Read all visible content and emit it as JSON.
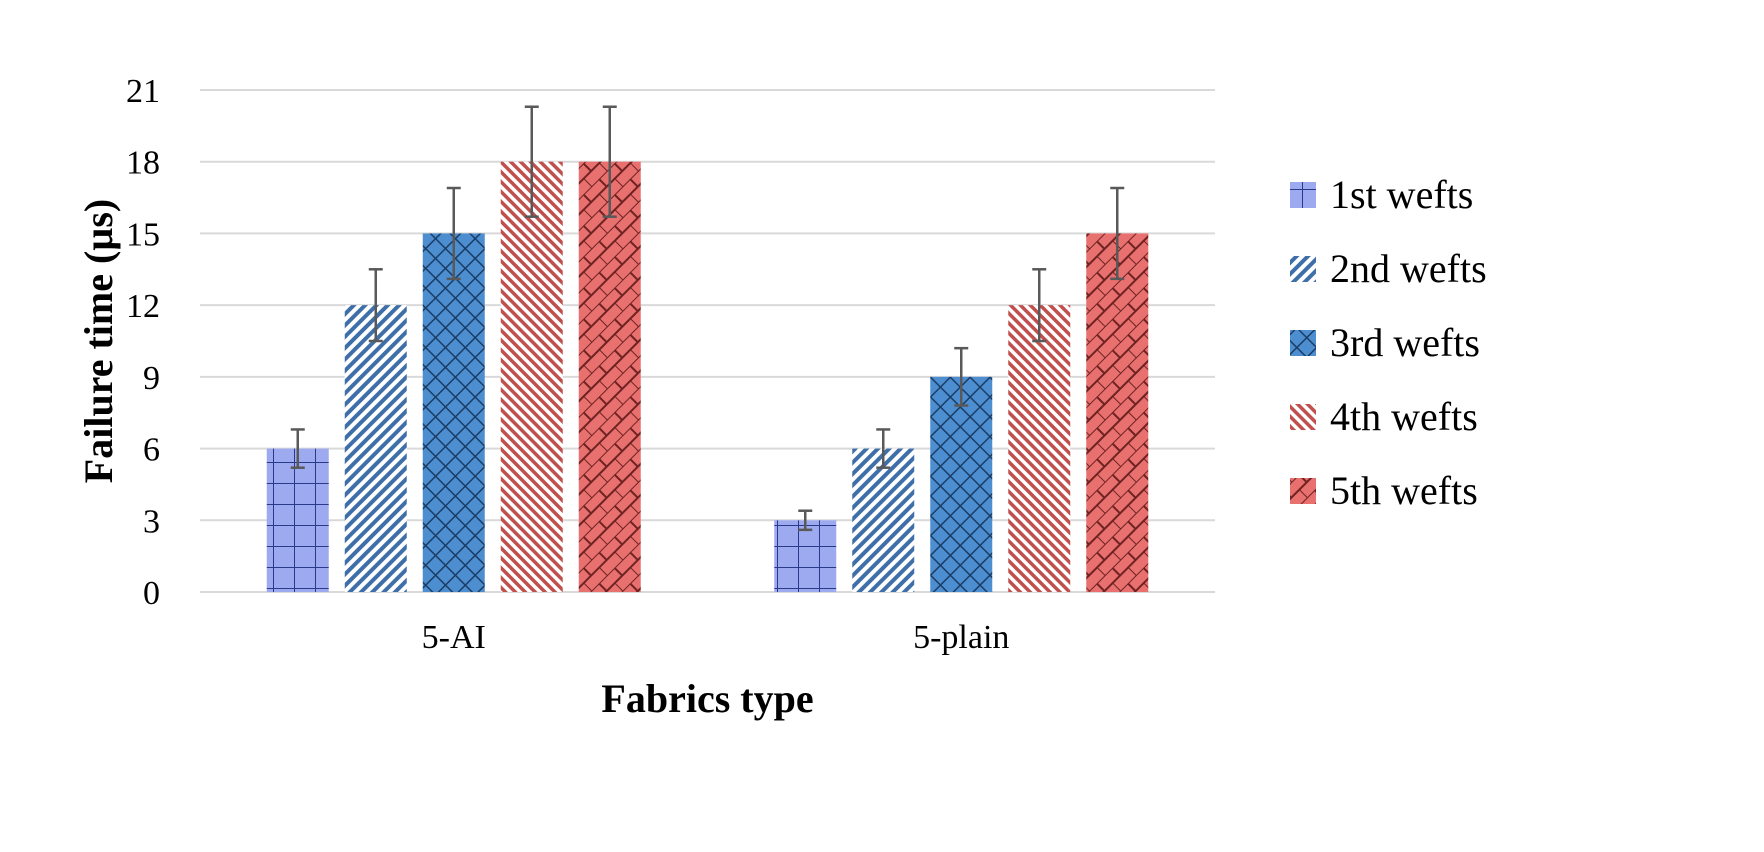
{
  "chart_data": {
    "type": "bar",
    "title": "",
    "xlabel": "Fabrics type",
    "ylabel": "Failure time (µs)",
    "categories": [
      "5-AI",
      "5-plain"
    ],
    "ylim": [
      0,
      21
    ],
    "yticks": [
      0,
      3,
      6,
      9,
      12,
      15,
      18,
      21
    ],
    "grid": true,
    "legend_position": "right",
    "series": [
      {
        "name": "1st wefts",
        "values": [
          6,
          3
        ],
        "errors": [
          0.8,
          0.4
        ],
        "color": "#9eaaf0",
        "pattern": "grid"
      },
      {
        "name": "2nd wefts",
        "values": [
          12,
          6
        ],
        "errors": [
          1.5,
          0.8
        ],
        "color": "#5b8fc8",
        "pattern": "diag"
      },
      {
        "name": "3rd wefts",
        "values": [
          15,
          9
        ],
        "errors": [
          1.9,
          1.2
        ],
        "color": "#4d8ed0",
        "pattern": "diamond"
      },
      {
        "name": "4th wefts",
        "values": [
          18,
          12
        ],
        "errors": [
          2.3,
          1.5
        ],
        "color": "#d9605f",
        "pattern": "diagfine"
      },
      {
        "name": "5th wefts",
        "values": [
          18,
          15
        ],
        "errors": [
          2.3,
          1.9
        ],
        "color": "#e8706f",
        "pattern": "brick"
      }
    ]
  }
}
